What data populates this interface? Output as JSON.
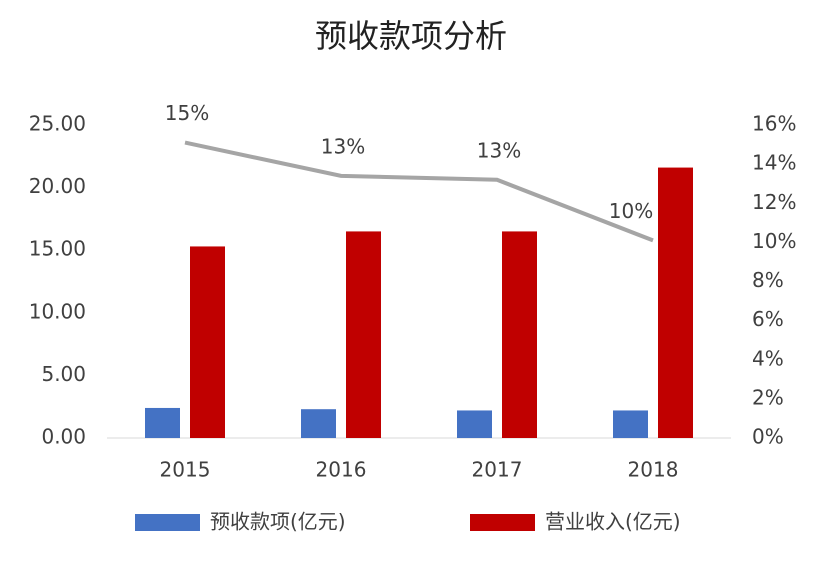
{
  "chart_data": {
    "type": "bar",
    "title": "预收款项分析",
    "categories": [
      "2015",
      "2016",
      "2017",
      "2018"
    ],
    "series": [
      {
        "name": "预收款项(亿元)",
        "type": "bar",
        "color": "#4472c4",
        "values": [
          2.4,
          2.3,
          2.2,
          2.2
        ]
      },
      {
        "name": "营业收入(亿元)",
        "type": "bar",
        "color": "#c00000",
        "values": [
          15.3,
          16.5,
          16.5,
          21.6
        ]
      },
      {
        "type": "line",
        "axis": "y2",
        "color": "#a5a5a5",
        "values": [
          15.1,
          13.4,
          13.2,
          10.1
        ],
        "value_labels": [
          "15%",
          "13%",
          "13%",
          "10%"
        ]
      }
    ],
    "ylim": [
      0,
      25
    ],
    "yticks": [
      {
        "value": 0,
        "label": "0.00"
      },
      {
        "value": 5,
        "label": "5.00"
      },
      {
        "value": 10,
        "label": "10.00"
      },
      {
        "value": 15,
        "label": "15.00"
      },
      {
        "value": 20,
        "label": "20.00"
      },
      {
        "value": 25,
        "label": "25.00"
      }
    ],
    "y2lim": [
      0,
      16
    ],
    "y2ticks": [
      {
        "value": 0,
        "label": "0%"
      },
      {
        "value": 2,
        "label": "2%"
      },
      {
        "value": 4,
        "label": "4%"
      },
      {
        "value": 6,
        "label": "6%"
      },
      {
        "value": 8,
        "label": "8%"
      },
      {
        "value": 10,
        "label": "10%"
      },
      {
        "value": 12,
        "label": "12%"
      },
      {
        "value": 14,
        "label": "14%"
      },
      {
        "value": 16,
        "label": "16%"
      }
    ]
  }
}
